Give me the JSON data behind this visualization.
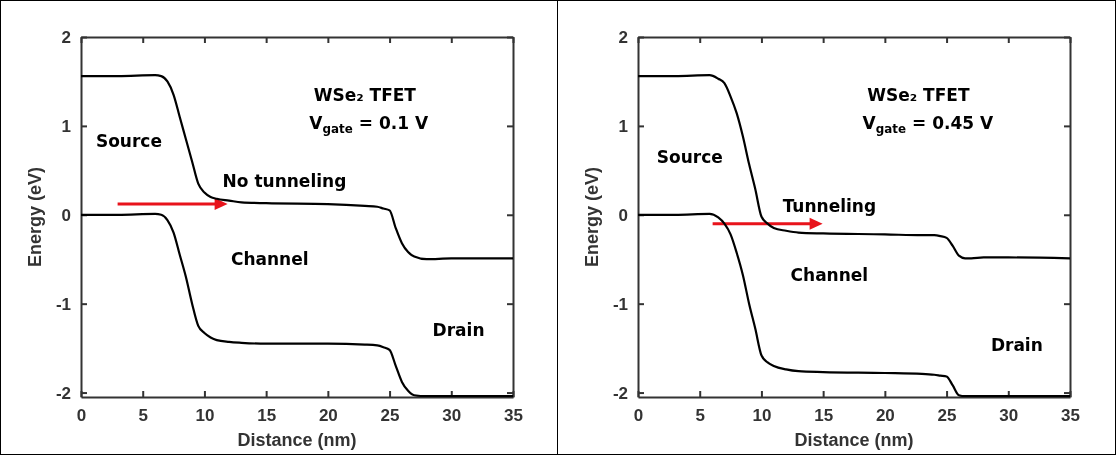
{
  "chart_data": [
    {
      "type": "line",
      "xlabel": "Distance (nm)",
      "ylabel": "Energy (eV)",
      "xlim": [
        0,
        35
      ],
      "ylim": [
        -2.05,
        2
      ],
      "xticks": [
        0,
        5,
        10,
        15,
        20,
        25,
        30,
        35
      ],
      "yticks": [
        -2,
        -1,
        0,
        1,
        2
      ],
      "line_style": "solid",
      "marker": "none",
      "series": [
        {
          "color": "#000000",
          "x": [
            0,
            3,
            6,
            6.5,
            7,
            7.5,
            8,
            8.5,
            9,
            9.5,
            10,
            10.5,
            11,
            12,
            13,
            15,
            20,
            23,
            24,
            24.5,
            25,
            25.5,
            26,
            26.5,
            27,
            28,
            30,
            35
          ],
          "values": [
            1.56,
            1.56,
            1.57,
            1.56,
            1.5,
            1.35,
            1.1,
            0.85,
            0.6,
            0.35,
            0.25,
            0.2,
            0.18,
            0.16,
            0.14,
            0.13,
            0.12,
            0.1,
            0.09,
            0.07,
            0.05,
            -0.15,
            -0.32,
            -0.42,
            -0.47,
            -0.5,
            -0.49,
            -0.49
          ]
        },
        {
          "color": "#000000",
          "x": [
            0,
            3,
            6,
            6.5,
            7,
            7.5,
            8,
            8.5,
            9,
            9.5,
            10,
            10.5,
            11,
            12,
            13,
            15,
            20,
            23,
            24,
            24.5,
            25,
            25.5,
            26,
            26.5,
            27,
            28,
            30,
            35
          ],
          "values": [
            0,
            0,
            0.01,
            0,
            -0.06,
            -0.2,
            -0.45,
            -0.7,
            -1.0,
            -1.25,
            -1.33,
            -1.38,
            -1.41,
            -1.43,
            -1.44,
            -1.45,
            -1.45,
            -1.46,
            -1.47,
            -1.49,
            -1.52,
            -1.7,
            -1.88,
            -1.98,
            -2.03,
            -2.04,
            -2.04,
            -2.04
          ]
        }
      ],
      "annotations": [
        "WSe₂ TFET",
        "V$_{gate}$ = 0.1 V",
        "Source",
        "No tunneling",
        "Channel",
        "Drain"
      ]
    },
    {
      "type": "line",
      "xlabel": "Distance (nm)",
      "ylabel": "Energy (eV)",
      "xlim": [
        0,
        35
      ],
      "ylim": [
        -2.05,
        2
      ],
      "xticks": [
        0,
        5,
        10,
        15,
        20,
        25,
        30,
        35
      ],
      "yticks": [
        -2,
        -1,
        0,
        1,
        2
      ],
      "line_style": "solid",
      "marker": "none",
      "series": [
        {
          "color": "#000000",
          "x": [
            0,
            3,
            5.8,
            6.5,
            7,
            7.5,
            8,
            8.5,
            9,
            9.5,
            10,
            10.5,
            11,
            12,
            13,
            15,
            20,
            23,
            24,
            24.5,
            25,
            25.5,
            26,
            26.5,
            27,
            28,
            30,
            35
          ],
          "values": [
            1.56,
            1.56,
            1.57,
            1.53,
            1.48,
            1.33,
            1.14,
            0.88,
            0.57,
            0.29,
            -0.02,
            -0.1,
            -0.15,
            -0.18,
            -0.2,
            -0.21,
            -0.22,
            -0.23,
            -0.23,
            -0.24,
            -0.26,
            -0.35,
            -0.46,
            -0.49,
            -0.49,
            -0.48,
            -0.48,
            -0.49
          ]
        },
        {
          "color": "#000000",
          "x": [
            0,
            3,
            5.8,
            6.5,
            7,
            7.5,
            8,
            8.5,
            9,
            9.5,
            10,
            10.5,
            11,
            12,
            13,
            15,
            20,
            23,
            24,
            24.5,
            25,
            25.5,
            26,
            26.5,
            27,
            28,
            30,
            35
          ],
          "values": [
            0,
            0,
            0.01,
            -0.03,
            -0.1,
            -0.22,
            -0.43,
            -0.68,
            -1.0,
            -1.28,
            -1.58,
            -1.66,
            -1.7,
            -1.74,
            -1.76,
            -1.77,
            -1.78,
            -1.79,
            -1.8,
            -1.81,
            -1.82,
            -1.92,
            -2.03,
            -2.04,
            -2.04,
            -2.04,
            -2.04,
            -2.04
          ]
        }
      ],
      "annotations": [
        "WSe₂ TFET",
        "V$_{gate}$ = 0.45 V",
        "Source",
        "Tunneling",
        "Channel",
        "Drain"
      ]
    }
  ]
}
